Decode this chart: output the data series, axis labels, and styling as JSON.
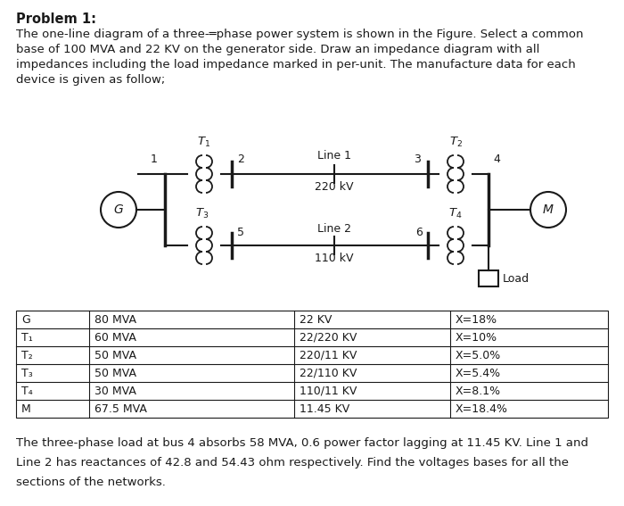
{
  "title": "Problem 1:",
  "para1_line1": "The one-line diagram of a three-═phase power system is shown in the Figure. Select a common",
  "para1_line2": "base of 100 MVA and 22 KV on the generator side. Draw an impedance diagram with all",
  "para1_line3": "impedances including the load impedance marked in per-unit. The manufacture data for each",
  "para1_line4": "device is given as follow;",
  "para2_line1": "The three-phase load at bus 4 absorbs 58 MVA, 0.6 power factor lagging at 11.45 KV. Line 1 and",
  "para2_line2": "Line 2 has reactances of 42.8 and 54.43 ohm respectively. Find the voltages bases for all the",
  "para2_line3": "sections of the networks.",
  "table_rows": [
    [
      "G",
      "80 MVA",
      "22 KV",
      "X=18%"
    ],
    [
      "T₁",
      "60 MVA",
      "22/220 KV",
      "X=10%"
    ],
    [
      "T₂",
      "50 MVA",
      "220/11 KV",
      "X=5.0%"
    ],
    [
      "T₃",
      "50 MVA",
      "22/110 KV",
      "X=5.4%"
    ],
    [
      "T₄",
      "30 MVA",
      "110/11 KV",
      "X=8.1%"
    ],
    [
      "M",
      "67.5 MVA",
      "11.45 KV",
      "X=18.4%"
    ]
  ],
  "bg_color": "#ffffff",
  "text_color": "#1a1a1a",
  "line_color": "#1a1a1a",
  "font_size_title": 10.5,
  "font_size_body": 9.5,
  "font_size_diagram": 9,
  "font_size_table": 9
}
